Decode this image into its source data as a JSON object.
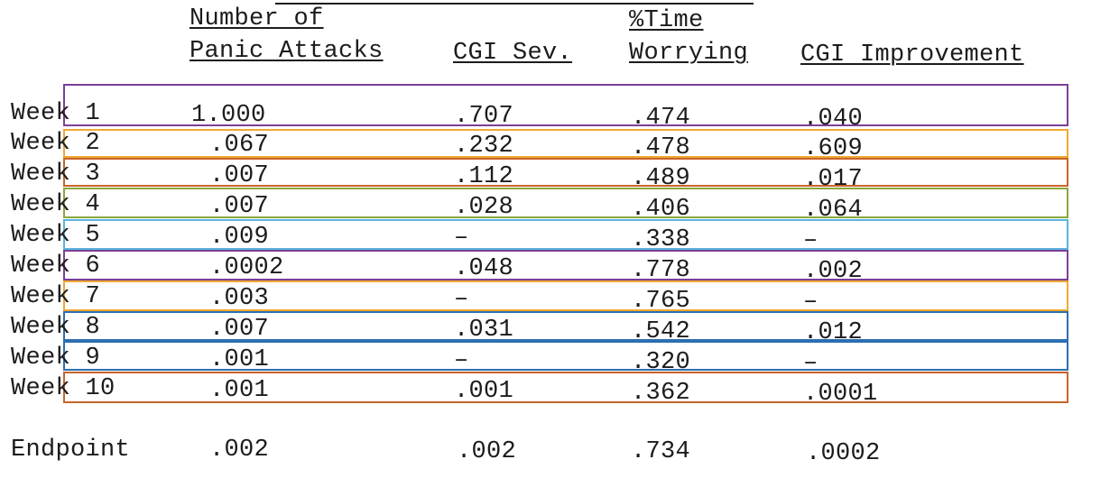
{
  "header": {
    "col1_line1": "Number of",
    "col1_line2": "Panic Attacks",
    "col2": "CGI Sev.",
    "col3_line1": "%Time",
    "col3_line2": "Worrying",
    "col4": "CGI Improvement"
  },
  "rows": [
    {
      "label": "Week 1",
      "panic": "1.000",
      "cgi_sev": ".707",
      "worry": ".474",
      "cgi_imp": ".040"
    },
    {
      "label": "Week 2",
      "panic": ".067",
      "cgi_sev": ".232",
      "worry": ".478",
      "cgi_imp": ".609"
    },
    {
      "label": "Week 3",
      "panic": ".007",
      "cgi_sev": ".112",
      "worry": ".489",
      "cgi_imp": ".017"
    },
    {
      "label": "Week 4",
      "panic": ".007",
      "cgi_sev": ".028",
      "worry": ".406",
      "cgi_imp": ".064"
    },
    {
      "label": "Week 5",
      "panic": ".009",
      "cgi_sev": "–",
      "worry": ".338",
      "cgi_imp": "–"
    },
    {
      "label": "Week 6",
      "panic": ".0002",
      "cgi_sev": ".048",
      "worry": ".778",
      "cgi_imp": ".002"
    },
    {
      "label": "Week 7",
      "panic": ".003",
      "cgi_sev": "–",
      "worry": ".765",
      "cgi_imp": "–"
    },
    {
      "label": "Week 8",
      "panic": ".007",
      "cgi_sev": ".031",
      "worry": ".542",
      "cgi_imp": ".012"
    },
    {
      "label": "Week 9",
      "panic": ".001",
      "cgi_sev": "–",
      "worry": ".320",
      "cgi_imp": "–"
    },
    {
      "label": "Week 10",
      "panic": ".001",
      "cgi_sev": ".001",
      "worry": ".362",
      "cgi_imp": ".0001"
    }
  ],
  "endpoint": {
    "label": "Endpoint",
    "panic": ".002",
    "cgi_sev": ".002",
    "worry": ".734",
    "cgi_imp": ".0002"
  },
  "highlight_colors": [
    "#7b3f98",
    "#f0a830",
    "#c8642c",
    "#8aa83c",
    "#5ab4dc",
    "#7b3f98",
    "#f0a830",
    "#2c6fb0",
    "#2c6fb0",
    "#c8642c"
  ]
}
